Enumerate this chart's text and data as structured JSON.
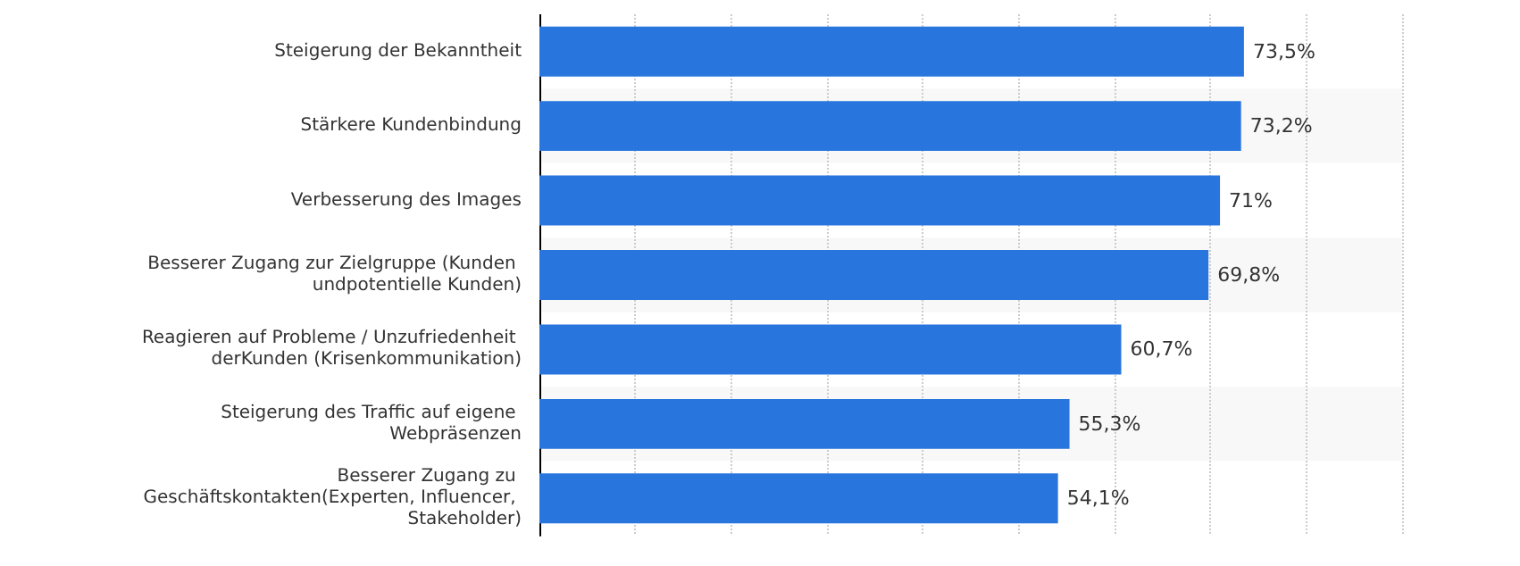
{
  "chart_data": {
    "type": "bar",
    "orientation": "horizontal",
    "categories": [
      "Steigerung der Bekanntheit",
      "Stärkere Kundenbindung",
      "Verbesserung des Images",
      "Besserer Zugang zur Zielgruppe (Kunden undpotentielle Kunden)",
      "Reagieren auf Probleme / Unzufriedenheit derKunden (Krisenkommunikation)",
      "Steigerung des Traffic auf eigene Webpräsenzen",
      "Besserer Zugang zu Geschäftskontakten(Experten, Influencer, Stakeholder)"
    ],
    "values": [
      73.5,
      73.2,
      71,
      69.8,
      60.7,
      55.3,
      54.1
    ],
    "value_labels": [
      "73,5%",
      "73,2%",
      "71%",
      "69,8%",
      "60,7%",
      "55,3%",
      "54,1%"
    ],
    "color": "#2876dd",
    "xlim": [
      0,
      90
    ],
    "xticks": [
      {
        "value": 0,
        "label": null
      },
      {
        "value": 10,
        "label": null
      },
      {
        "value": 20,
        "label": null
      },
      {
        "value": 30,
        "label": null
      },
      {
        "value": 40,
        "label": null
      },
      {
        "value": 50,
        "label": null
      },
      {
        "value": 60,
        "label": null
      },
      {
        "value": 70,
        "label": null
      },
      {
        "value": 80,
        "label": null
      },
      {
        "value": 90,
        "label": null
      }
    ],
    "tick_labels": "y",
    "grid": "x"
  }
}
